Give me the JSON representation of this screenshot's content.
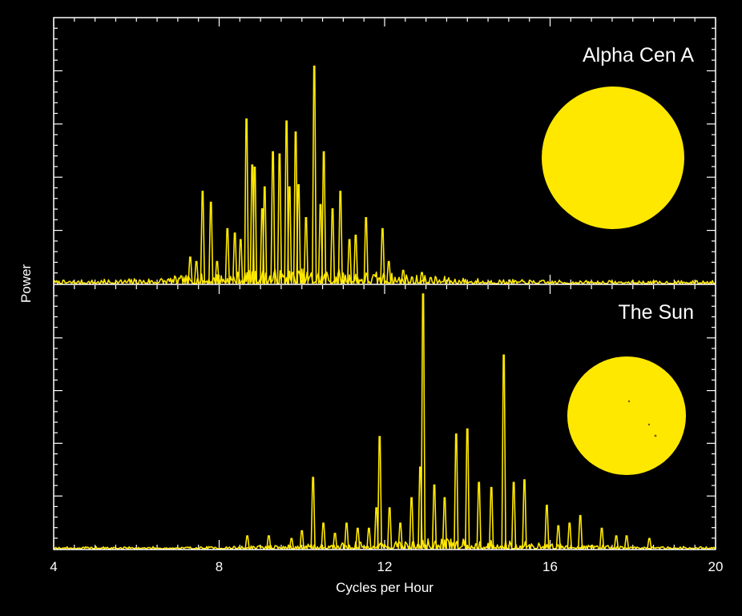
{
  "chart_data": [
    {
      "type": "line",
      "title": "Alpha Cen A",
      "xlabel": "Cycles per Hour",
      "ylabel": "Power",
      "xlim": [
        4,
        20
      ],
      "ylim": [
        0,
        1
      ],
      "xticks": [
        "4",
        "8",
        "12",
        "16",
        "20"
      ],
      "line_color": "#ffe800",
      "star_color": "#ffe800",
      "peaks": [
        {
          "x": 7.3,
          "y": 0.12
        },
        {
          "x": 7.45,
          "y": 0.1
        },
        {
          "x": 7.6,
          "y": 0.42
        },
        {
          "x": 7.8,
          "y": 0.37
        },
        {
          "x": 7.95,
          "y": 0.1
        },
        {
          "x": 8.2,
          "y": 0.25
        },
        {
          "x": 8.38,
          "y": 0.23
        },
        {
          "x": 8.52,
          "y": 0.2
        },
        {
          "x": 8.66,
          "y": 0.75
        },
        {
          "x": 8.8,
          "y": 0.54
        },
        {
          "x": 8.86,
          "y": 0.53
        },
        {
          "x": 9.04,
          "y": 0.34
        },
        {
          "x": 9.1,
          "y": 0.44
        },
        {
          "x": 9.3,
          "y": 0.6
        },
        {
          "x": 9.46,
          "y": 0.59
        },
        {
          "x": 9.63,
          "y": 0.74
        },
        {
          "x": 9.7,
          "y": 0.44
        },
        {
          "x": 9.85,
          "y": 0.69
        },
        {
          "x": 9.92,
          "y": 0.45
        },
        {
          "x": 10.1,
          "y": 0.3
        },
        {
          "x": 10.3,
          "y": 0.99
        },
        {
          "x": 10.45,
          "y": 0.36
        },
        {
          "x": 10.53,
          "y": 0.6
        },
        {
          "x": 10.74,
          "y": 0.34
        },
        {
          "x": 10.93,
          "y": 0.42
        },
        {
          "x": 11.15,
          "y": 0.2
        },
        {
          "x": 11.3,
          "y": 0.22
        },
        {
          "x": 11.55,
          "y": 0.3
        },
        {
          "x": 11.95,
          "y": 0.25
        },
        {
          "x": 12.1,
          "y": 0.1
        },
        {
          "x": 12.45,
          "y": 0.06
        },
        {
          "x": 12.9,
          "y": 0.05
        }
      ],
      "noise_level": 0.035
    },
    {
      "type": "line",
      "title": "The Sun",
      "xlabel": "Cycles per Hour",
      "ylabel": "Power",
      "xlim": [
        4,
        20
      ],
      "ylim": [
        0,
        1
      ],
      "xticks": [
        "4",
        "8",
        "12",
        "16",
        "20"
      ],
      "line_color": "#ffe800",
      "star_color": "#ffe800",
      "peaks": [
        {
          "x": 8.68,
          "y": 0.05
        },
        {
          "x": 9.2,
          "y": 0.05
        },
        {
          "x": 9.75,
          "y": 0.04
        },
        {
          "x": 10.0,
          "y": 0.07
        },
        {
          "x": 10.27,
          "y": 0.28
        },
        {
          "x": 10.52,
          "y": 0.1
        },
        {
          "x": 10.8,
          "y": 0.06
        },
        {
          "x": 11.08,
          "y": 0.1
        },
        {
          "x": 11.35,
          "y": 0.08
        },
        {
          "x": 11.62,
          "y": 0.08
        },
        {
          "x": 11.8,
          "y": 0.16
        },
        {
          "x": 11.88,
          "y": 0.44
        },
        {
          "x": 12.12,
          "y": 0.16
        },
        {
          "x": 12.38,
          "y": 0.1
        },
        {
          "x": 12.65,
          "y": 0.2
        },
        {
          "x": 12.86,
          "y": 0.32
        },
        {
          "x": 12.93,
          "y": 1.0
        },
        {
          "x": 13.2,
          "y": 0.25
        },
        {
          "x": 13.45,
          "y": 0.2
        },
        {
          "x": 13.73,
          "y": 0.45
        },
        {
          "x": 14.0,
          "y": 0.47
        },
        {
          "x": 14.28,
          "y": 0.26
        },
        {
          "x": 14.58,
          "y": 0.24
        },
        {
          "x": 14.88,
          "y": 0.76
        },
        {
          "x": 15.12,
          "y": 0.26
        },
        {
          "x": 15.38,
          "y": 0.27
        },
        {
          "x": 15.92,
          "y": 0.17
        },
        {
          "x": 16.2,
          "y": 0.09
        },
        {
          "x": 16.47,
          "y": 0.1
        },
        {
          "x": 16.73,
          "y": 0.13
        },
        {
          "x": 17.25,
          "y": 0.08
        },
        {
          "x": 17.6,
          "y": 0.05
        },
        {
          "x": 17.85,
          "y": 0.05
        },
        {
          "x": 18.4,
          "y": 0.04
        }
      ],
      "noise_level": 0.02
    }
  ]
}
